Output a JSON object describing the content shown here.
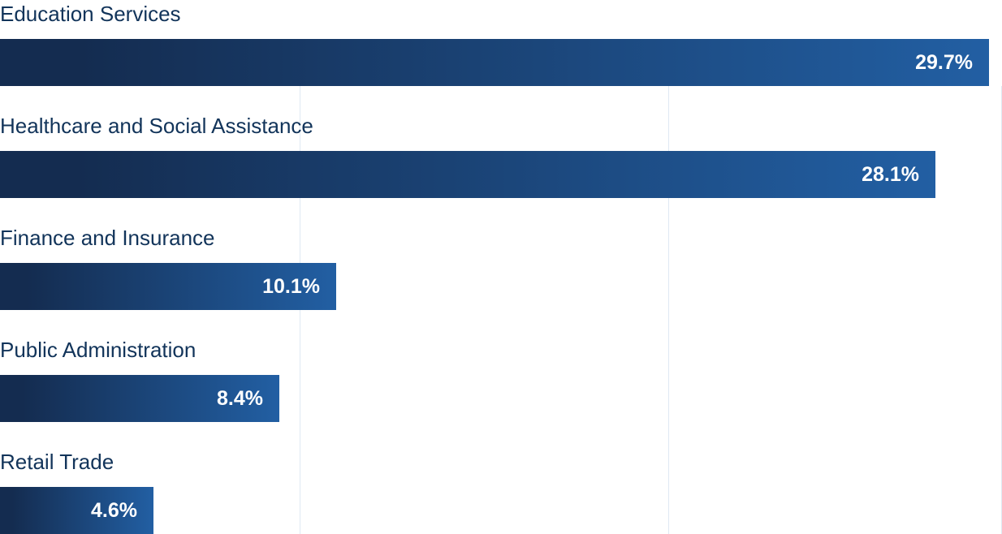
{
  "chart_data": {
    "type": "bar",
    "orientation": "horizontal",
    "categories": [
      "Education Services",
      "Healthcare and Social Assistance",
      "Finance and Insurance",
      "Public Administration",
      "Retail Trade"
    ],
    "values": [
      29.7,
      28.1,
      10.1,
      8.4,
      4.6
    ],
    "value_labels": [
      "29.7%",
      "28.1%",
      "10.1%",
      "8.4%",
      "4.6%"
    ],
    "title": "",
    "xlabel": "",
    "ylabel": "",
    "xlim": [
      0,
      30
    ],
    "grid": true,
    "legend": "none"
  },
  "colors": {
    "bar_gradient_start": "#142c50",
    "bar_gradient_end": "#225fa3",
    "label_text": "#12345a",
    "value_text": "#ffffff",
    "gridline": "#dfe9f3"
  }
}
